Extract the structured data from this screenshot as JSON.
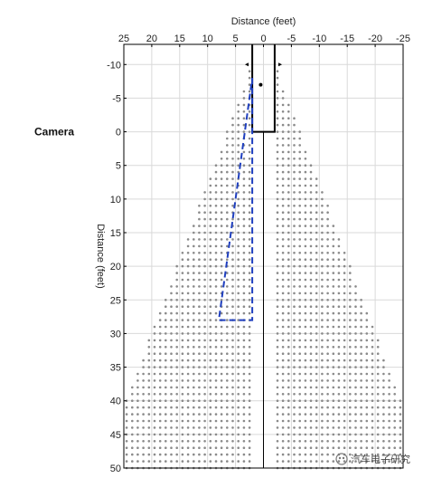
{
  "chart_data": {
    "type": "scatter",
    "title": "",
    "xlabel": "Distance (feet)",
    "ylabel": "Distance (feet)",
    "xlim": [
      25,
      -25
    ],
    "ylim": [
      -13,
      50
    ],
    "x_ticks": [
      25,
      20,
      15,
      10,
      5,
      0,
      -5,
      -10,
      -15,
      -20,
      -25
    ],
    "y_ticks": [
      -10,
      -5,
      0,
      5,
      10,
      15,
      20,
      25,
      30,
      35,
      40,
      45,
      50
    ],
    "grid": true,
    "annotations": [
      {
        "text": "Camera",
        "y": 0
      }
    ],
    "field_of_view": {
      "apex": [
        0,
        -9
      ],
      "spread_per_foot": 0.45,
      "inner_half_gap": 2,
      "x_extent": [
        -24.5,
        24.5
      ],
      "y_range": [
        -9,
        50
      ],
      "spacing": 1
    },
    "vehicle_outline": [
      [
        2,
        -13
      ],
      [
        2,
        0
      ],
      [
        -2,
        0
      ],
      [
        -2,
        -13
      ]
    ],
    "center_line_x": 0,
    "detection_zone": [
      [
        2,
        -8
      ],
      [
        2,
        28
      ],
      [
        8,
        28
      ],
      [
        2,
        -8
      ]
    ],
    "detection_zone_color": "#1f3fbf",
    "markers": [
      {
        "x": 0.5,
        "y": -7,
        "shape": "dot"
      },
      {
        "x": 3,
        "y": -10,
        "shape": "triangle-left"
      },
      {
        "x": -3,
        "y": -10,
        "shape": "triangle-right"
      }
    ]
  },
  "watermark": "汽车电子研究"
}
